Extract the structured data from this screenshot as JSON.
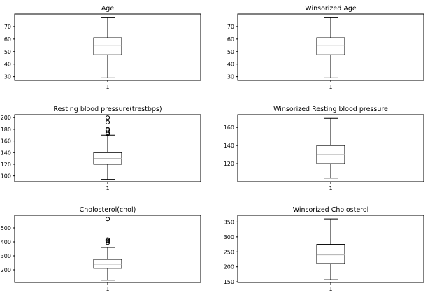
{
  "chart_data": [
    {
      "type": "box",
      "title": "Age",
      "xticks": [
        "1"
      ],
      "ylim": [
        27,
        80
      ],
      "yticks": [
        30,
        40,
        50,
        60,
        70
      ],
      "box": {
        "whisker_low": 29,
        "q1": 47.5,
        "median": 55,
        "q3": 61,
        "whisker_high": 77
      },
      "fliers": []
    },
    {
      "type": "box",
      "title": "Winsorized Age",
      "xticks": [
        "1"
      ],
      "ylim": [
        27,
        80
      ],
      "yticks": [
        30,
        40,
        50,
        60,
        70
      ],
      "box": {
        "whisker_low": 29,
        "q1": 47.5,
        "median": 55,
        "q3": 61,
        "whisker_high": 77
      },
      "fliers": []
    },
    {
      "type": "box",
      "title": "Resting blood pressure(trestbps)",
      "xticks": [
        "1"
      ],
      "ylim": [
        90,
        205
      ],
      "yticks": [
        100,
        120,
        140,
        160,
        180,
        200
      ],
      "box": {
        "whisker_low": 94,
        "q1": 120,
        "median": 130,
        "q3": 140,
        "whisker_high": 170
      },
      "fliers": [
        172,
        174,
        178,
        180,
        180,
        192,
        200
      ]
    },
    {
      "type": "box",
      "title": "Winsorized Resting blood pressure",
      "xticks": [
        "1"
      ],
      "ylim": [
        100,
        174
      ],
      "yticks": [
        120,
        140,
        160
      ],
      "box": {
        "whisker_low": 104,
        "q1": 120,
        "median": 130,
        "q3": 140,
        "whisker_high": 170
      },
      "fliers": []
    },
    {
      "type": "box",
      "title": "Cholosterol(chol)",
      "xticks": [
        "1"
      ],
      "ylim": [
        110,
        590
      ],
      "yticks": [
        200,
        300,
        400,
        500
      ],
      "box": {
        "whisker_low": 126,
        "q1": 211,
        "median": 240,
        "q3": 275,
        "whisker_high": 360
      },
      "fliers": [
        394,
        407,
        409,
        417,
        564
      ]
    },
    {
      "type": "box",
      "title": "Winsorized Cholosterol",
      "xticks": [
        "1"
      ],
      "ylim": [
        148,
        372
      ],
      "yticks": [
        150,
        200,
        250,
        300,
        350
      ],
      "box": {
        "whisker_low": 157,
        "q1": 211,
        "median": 240,
        "q3": 275,
        "whisker_high": 360
      },
      "fliers": []
    }
  ]
}
